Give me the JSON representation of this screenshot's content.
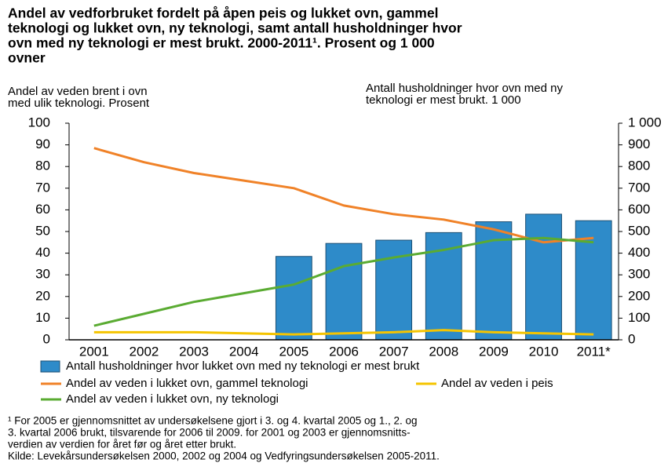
{
  "chart_data": {
    "type": "bar-line",
    "title": [
      "Andel av vedforbruket fordelt på åpen peis og lukket ovn, gammel",
      "teknologi og lukket ovn, ny teknologi, samt antall husholdninger hvor",
      "ovn med ny teknologi er mest brukt. 2000-2011¹. Prosent og 1 000",
      "ovner"
    ],
    "y_label": [
      "Andel av veden brent i ovn",
      "med ulik teknologi. Prosent"
    ],
    "y2_label": [
      "Antall husholdninger hvor ovn med ny",
      "teknologi er mest brukt. 1 000"
    ],
    "categories": [
      "2001",
      "2002",
      "2003",
      "2004",
      "2005",
      "2006",
      "2007",
      "2008",
      "2009",
      "2010",
      "2011*"
    ],
    "series": [
      {
        "name": "Antall husholdninger hvor lukket ovn med ny teknologi er mest brukt",
        "type": "bar",
        "axis": "y2",
        "color": "#2e8bc9",
        "values": [
          null,
          null,
          null,
          null,
          385,
          445,
          460,
          495,
          545,
          580,
          550
        ]
      },
      {
        "name": "Andel av veden i lukket ovn, gammel teknologi",
        "type": "line",
        "color": "#f08228",
        "values": [
          88.5,
          82,
          77,
          73.5,
          70,
          62,
          58,
          55.5,
          51,
          45,
          47
        ]
      },
      {
        "name": "Andel av veden i peis",
        "type": "line",
        "color": "#f5c400",
        "values": [
          3.5,
          3.5,
          3.5,
          3,
          2.5,
          3,
          3.5,
          4.5,
          3.5,
          3,
          2.5
        ]
      },
      {
        "name": "Andel av veden i lukket ovn, ny teknologi",
        "type": "line",
        "color": "#5aab32",
        "values": [
          6.5,
          12,
          17.5,
          21.5,
          25.5,
          34,
          38,
          41.5,
          46,
          47,
          45
        ]
      }
    ],
    "ylim": [
      0,
      100
    ],
    "yticks": [
      0,
      10,
      20,
      30,
      40,
      50,
      60,
      70,
      80,
      90,
      100
    ],
    "y2lim": [
      0,
      1000
    ],
    "y2ticks": [
      0,
      100,
      200,
      300,
      400,
      500,
      600,
      700,
      800,
      900,
      {
        "value": 1000,
        "label": "1 000"
      }
    ],
    "grid": false,
    "footnote": [
      "¹ For 2005 er gjennomsnittet av undersøkelsene gjort i 3. og 4. kvartal 2005 og 1., 2. og",
      "3. kvartal 2006 brukt, tilsvarende for 2006 til 2009.  for 2001 og 2003 er gjennomsnitts-",
      "verdien av verdien for året før og året etter brukt."
    ],
    "source": "Kilde: Levekårsundersøkelsen 2000, 2002 og 2004 og Vedfyringsundersøkelsen 2005-2011."
  }
}
